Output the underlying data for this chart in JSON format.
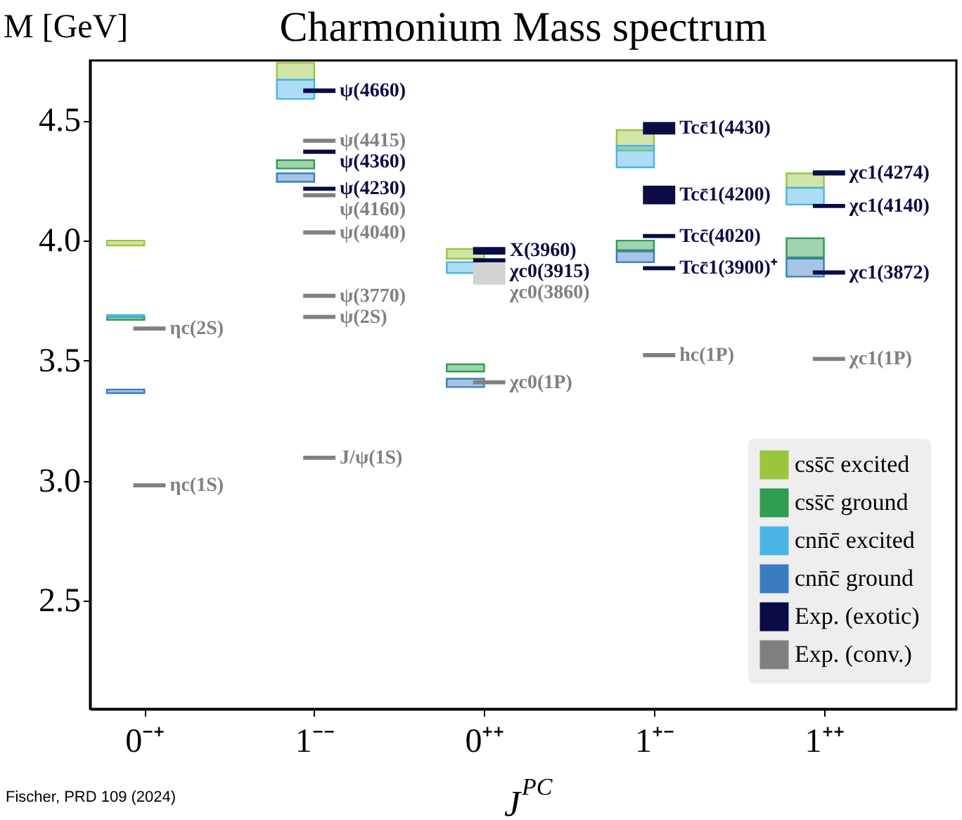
{
  "chart_data": {
    "type": "bar",
    "title": "Charmonium Mass spectrum",
    "xlabel": "J$^{PC}$",
    "ylabel": "M [GeV]",
    "categories": [
      "0⁻⁺",
      "1⁻⁻",
      "0⁺⁺",
      "1⁺⁻",
      "1⁺⁺"
    ],
    "ylim": [
      2.05,
      4.75
    ],
    "yticks": [
      {
        "value": 2.5,
        "label": "2.5"
      },
      {
        "value": 3,
        "label": "3.0"
      },
      {
        "value": 3.5,
        "label": "3.5"
      },
      {
        "value": 4,
        "label": "4.0"
      },
      {
        "value": 4.5,
        "label": "4.5"
      }
    ],
    "grid": false,
    "legend": "bottom right",
    "annotations": [
      "Fischer, PRD 109 (2024)",
      {
        "text": "ψ(4660)",
        "x": "1⁻⁻",
        "y": 4.624
      },
      {
        "text": "ψ(4360)",
        "x": "1⁻⁻",
        "y": 4.37
      },
      {
        "text": "ψ(4230)",
        "x": "1⁻⁻",
        "y": 4.216
      },
      {
        "text": "X(3960)",
        "x": "0⁺⁺",
        "y": 3.958
      },
      {
        "text": "χc0(3915)",
        "x": "0⁺⁺",
        "y": 3.918
      },
      {
        "text": "Tcc̄1(4430)",
        "x": "1⁺⁻",
        "y": 4.468
      },
      {
        "text": "Tcc̄1(4200)",
        "x": "1⁺⁻",
        "y": 4.19
      },
      {
        "text": "Tcc̄(4020)",
        "x": "1⁺⁻",
        "y": 4.019
      },
      {
        "text": "Tcc̄1(3900)⁺",
        "x": "1⁺⁻",
        "y": 3.885
      },
      {
        "text": "χc1(4274)",
        "x": "1⁺⁺",
        "y": 4.282
      },
      {
        "text": "χc1(4140)",
        "x": "1⁺⁺",
        "y": 4.144
      },
      {
        "text": "χc1(3872)",
        "x": "1⁺⁺",
        "y": 3.867
      },
      {
        "text": "ηc(2S)",
        "x": "0⁻⁺",
        "y": 3.634
      },
      {
        "text": "ηc(1S)",
        "x": "0⁻⁺",
        "y": 2.981
      },
      {
        "text": "ψ(4415)",
        "x": "1⁻⁻",
        "y": 4.416
      },
      {
        "text": "ψ(4160)",
        "x": "1⁻⁻",
        "y": 4.189
      },
      {
        "text": "ψ(4040)",
        "x": "1⁻⁻",
        "y": 4.034
      },
      {
        "text": "ψ(3770)",
        "x": "1⁻⁻",
        "y": 3.77
      },
      {
        "text": "ψ(2S)",
        "x": "1⁻⁻",
        "y": 3.682
      },
      {
        "text": "J/ψ(1S)",
        "x": "1⁻⁻",
        "y": 3.096
      },
      {
        "text": "χc0(3860)",
        "x": "0⁺⁺",
        "y": 3.862
      },
      {
        "text": "χc0(1P)",
        "x": "0⁺⁺",
        "y": 3.41
      },
      {
        "text": "hc(1P)",
        "x": "1⁺⁻",
        "y": 3.523
      },
      {
        "text": "χc1(1P)",
        "x": "1⁺⁺",
        "y": 3.507
      }
    ],
    "series": [
      {
        "name": "css̄c̄ excited",
        "color": "#9bc53d",
        "base": [
          3.98,
          4.67,
          3.925,
          4.375,
          4.22
        ],
        "values": [
          0.02,
          0.07,
          0.04,
          0.085,
          0.06
        ]
      },
      {
        "name": "css̄c̄ ground",
        "color": "#2e9e4f",
        "base": [
          3.67,
          4.3,
          3.455,
          3.96,
          3.93
        ],
        "values": [
          0.012,
          0.035,
          0.03,
          0.04,
          0.08
        ]
      },
      {
        "name": "cnn̄c̄ excited",
        "color": "#4ab4e6",
        "base": [
          3.684,
          4.59,
          3.865,
          4.305,
          4.15
        ],
        "values": [
          0.006,
          0.08,
          0.045,
          0.09,
          0.07
        ]
      },
      {
        "name": "cnn̄c̄ ground",
        "color": "#3a7cc0",
        "base": [
          3.365,
          4.245,
          3.39,
          3.91,
          3.85
        ],
        "values": [
          0.015,
          0.035,
          0.035,
          0.045,
          0.075
        ]
      },
      {
        "name": "Exp. (exotic)",
        "color": "#0b0b45",
        "x": [
          "1⁻⁻",
          "1⁻⁻",
          "1⁻⁻",
          "0⁺⁺",
          "0⁺⁺",
          "1⁺⁻",
          "1⁺⁻",
          "1⁺⁻",
          "1⁺⁻",
          "1⁺⁺",
          "1⁺⁺",
          "1⁺⁺"
        ],
        "base": [
          4.618,
          4.365,
          4.211,
          3.945,
          3.913,
          4.445,
          4.155,
          4.014,
          3.88,
          4.275,
          4.139,
          3.862
        ],
        "values": [
          0.012,
          0.01,
          0.01,
          0.025,
          0.01,
          0.045,
          0.07,
          0.01,
          0.01,
          0.014,
          0.01,
          0.01
        ]
      },
      {
        "name": "Exp. (conv.)",
        "color": "#808080",
        "x": [
          "0⁻⁺",
          "0⁻⁺",
          "1⁻⁻",
          "1⁻⁻",
          "1⁻⁻",
          "1⁻⁻",
          "1⁻⁻",
          "1⁻⁻",
          "0⁺⁺",
          "0⁺⁺",
          "1⁺⁻",
          "1⁺⁺"
        ],
        "base": [
          3.629,
          2.976,
          4.411,
          4.184,
          4.029,
          3.765,
          3.677,
          3.091,
          3.82,
          3.405,
          3.518,
          3.502
        ],
        "values": [
          0.01,
          0.01,
          0.01,
          0.01,
          0.01,
          0.01,
          0.01,
          0.01,
          0.085,
          0.01,
          0.01,
          0.01
        ],
        "colors": [
          "#808080",
          "#808080",
          "#808080",
          "#808080",
          "#808080",
          "#808080",
          "#808080",
          "#808080",
          "#d3d3d3",
          "#808080",
          "#808080",
          "#808080"
        ]
      }
    ]
  }
}
